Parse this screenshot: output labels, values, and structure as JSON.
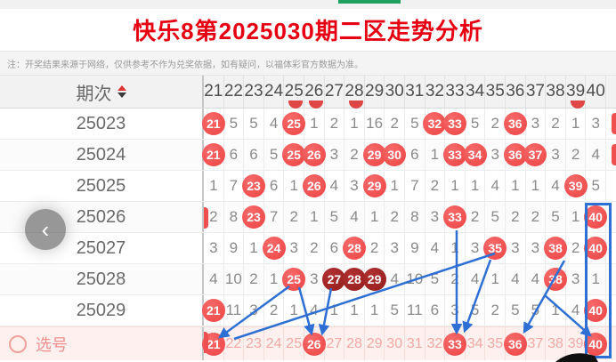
{
  "page": {
    "title": "快乐8第2025030期二区走势分析",
    "note": "注：开奖结果来源于网络，仅供参考不作为兑奖依据，如有疑问，以福体彩官方数据为准。"
  },
  "nav": {
    "prev_label": "‹"
  },
  "colors": {
    "title_red": "#e60012",
    "ball_red": "#ef4b4b",
    "ball_dark_red": "#9c2222",
    "annotation_blue": "#2e6fd4",
    "selection_bg": "#fdf0ee",
    "selection_text": "#f2a9a4",
    "green_accent": "#1ea05f"
  },
  "table": {
    "period_header": "期次",
    "sort_icons": [
      "up-triangle",
      "down-triangle"
    ],
    "columns": [
      "21",
      "22",
      "23",
      "24",
      "25",
      "26",
      "27",
      "28",
      "29",
      "30",
      "31",
      "32",
      "33",
      "34",
      "35",
      "36",
      "37",
      "38",
      "39",
      "40"
    ],
    "rows": [
      {
        "period": "25023",
        "cells": [
          {
            "t": "21",
            "b": 1
          },
          {
            "t": "5"
          },
          {
            "t": "5"
          },
          {
            "t": "4"
          },
          {
            "t": "25",
            "b": 1
          },
          {
            "t": "1"
          },
          {
            "t": "2"
          },
          {
            "t": "1"
          },
          {
            "t": "16"
          },
          {
            "t": "2"
          },
          {
            "t": "5"
          },
          {
            "t": "32",
            "b": 1
          },
          {
            "t": "33",
            "b": 1
          },
          {
            "t": "5"
          },
          {
            "t": "2"
          },
          {
            "t": "36",
            "b": 1
          },
          {
            "t": "3"
          },
          {
            "t": "2"
          },
          {
            "t": "1"
          },
          {
            "t": "3"
          }
        ]
      },
      {
        "period": "25024",
        "cells": [
          {
            "t": "21",
            "b": 1
          },
          {
            "t": "6"
          },
          {
            "t": "6"
          },
          {
            "t": "5"
          },
          {
            "t": "25",
            "b": 1
          },
          {
            "t": "26",
            "b": 1
          },
          {
            "t": "3"
          },
          {
            "t": "2"
          },
          {
            "t": "29",
            "b": 1
          },
          {
            "t": "30",
            "b": 1
          },
          {
            "t": "6"
          },
          {
            "t": "1"
          },
          {
            "t": "33",
            "b": 1
          },
          {
            "t": "34",
            "b": 1
          },
          {
            "t": "3"
          },
          {
            "t": "36",
            "b": 1
          },
          {
            "t": "37",
            "b": 1
          },
          {
            "t": "3"
          },
          {
            "t": "2"
          },
          {
            "t": "4"
          }
        ]
      },
      {
        "period": "25025",
        "cells": [
          {
            "t": "1"
          },
          {
            "t": "7"
          },
          {
            "t": "23",
            "b": 1
          },
          {
            "t": "6"
          },
          {
            "t": "1"
          },
          {
            "t": "26",
            "b": 1
          },
          {
            "t": "4"
          },
          {
            "t": "3"
          },
          {
            "t": "29",
            "b": 1
          },
          {
            "t": "1"
          },
          {
            "t": "7"
          },
          {
            "t": "2"
          },
          {
            "t": "1"
          },
          {
            "t": "1"
          },
          {
            "t": "4"
          },
          {
            "t": "1"
          },
          {
            "t": "1"
          },
          {
            "t": "4"
          },
          {
            "t": "39",
            "b": 1
          },
          {
            "t": "5"
          }
        ]
      },
      {
        "period": "25026",
        "cells": [
          {
            "t": "2"
          },
          {
            "t": "8"
          },
          {
            "t": "23",
            "b": 1
          },
          {
            "t": "7"
          },
          {
            "t": "2"
          },
          {
            "t": "1"
          },
          {
            "t": "5"
          },
          {
            "t": "4"
          },
          {
            "t": "1"
          },
          {
            "t": "2"
          },
          {
            "t": "8"
          },
          {
            "t": "3"
          },
          {
            "t": "33",
            "b": 1
          },
          {
            "t": "2"
          },
          {
            "t": "5"
          },
          {
            "t": "2"
          },
          {
            "t": "2"
          },
          {
            "t": "5"
          },
          {
            "t": "1"
          },
          {
            "t": "40",
            "b": 1
          }
        ]
      },
      {
        "period": "25027",
        "cells": [
          {
            "t": "3"
          },
          {
            "t": "9"
          },
          {
            "t": "1"
          },
          {
            "t": "24",
            "b": 1
          },
          {
            "t": "3"
          },
          {
            "t": "2"
          },
          {
            "t": "6"
          },
          {
            "t": "28",
            "b": 1
          },
          {
            "t": "2"
          },
          {
            "t": "3"
          },
          {
            "t": "9"
          },
          {
            "t": "4"
          },
          {
            "t": "1"
          },
          {
            "t": "3"
          },
          {
            "t": "35",
            "b": 1
          },
          {
            "t": "3"
          },
          {
            "t": "3"
          },
          {
            "t": "38",
            "b": 1
          },
          {
            "t": "2"
          },
          {
            "t": "40",
            "b": 1
          }
        ]
      },
      {
        "period": "25028",
        "cells": [
          {
            "t": "4"
          },
          {
            "t": "10"
          },
          {
            "t": "2"
          },
          {
            "t": "1"
          },
          {
            "t": "25",
            "b": 1
          },
          {
            "t": "3"
          },
          {
            "t": "27",
            "b": 1,
            "d": 1
          },
          {
            "t": "28",
            "b": 1,
            "d": 1
          },
          {
            "t": "29",
            "b": 1,
            "d": 1
          },
          {
            "t": "4"
          },
          {
            "t": "10"
          },
          {
            "t": "5"
          },
          {
            "t": "2"
          },
          {
            "t": "4"
          },
          {
            "t": "1"
          },
          {
            "t": "4"
          },
          {
            "t": "4"
          },
          {
            "t": "38",
            "b": 1
          },
          {
            "t": "3"
          },
          {
            "t": "1"
          }
        ]
      },
      {
        "period": "25029",
        "cells": [
          {
            "t": "21",
            "b": 1
          },
          {
            "t": "11"
          },
          {
            "t": "3"
          },
          {
            "t": "2"
          },
          {
            "t": "1"
          },
          {
            "t": "4"
          },
          {
            "t": "1"
          },
          {
            "t": "1"
          },
          {
            "t": "1"
          },
          {
            "t": "5"
          },
          {
            "t": "11"
          },
          {
            "t": "6"
          },
          {
            "t": "3"
          },
          {
            "t": "5"
          },
          {
            "t": "2"
          },
          {
            "t": "5"
          },
          {
            "t": "5"
          },
          {
            "t": "1"
          },
          {
            "t": "4"
          },
          {
            "t": "40",
            "b": 1
          }
        ]
      }
    ],
    "selection": {
      "label": "选号",
      "cells": [
        {
          "t": "21",
          "b": 1
        },
        {
          "t": "22"
        },
        {
          "t": "23"
        },
        {
          "t": "24"
        },
        {
          "t": "25"
        },
        {
          "t": "26",
          "b": 1
        },
        {
          "t": "27"
        },
        {
          "t": "28"
        },
        {
          "t": "29"
        },
        {
          "t": "30"
        },
        {
          "t": "31"
        },
        {
          "t": "32"
        },
        {
          "t": "33",
          "b": 1
        },
        {
          "t": "34"
        },
        {
          "t": "35"
        },
        {
          "t": "36",
          "b": 1
        },
        {
          "t": "37"
        },
        {
          "t": "38"
        },
        {
          "t": "39"
        },
        {
          "t": "40",
          "b": 1
        }
      ]
    }
  }
}
